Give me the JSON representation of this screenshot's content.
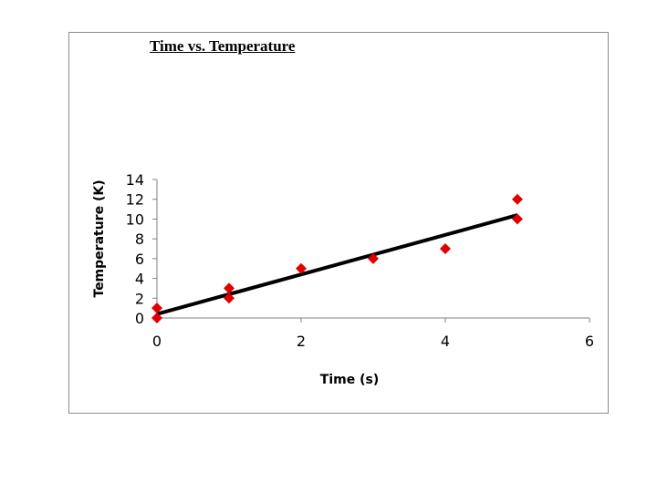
{
  "chart_data": {
    "type": "scatter",
    "title": "Time vs. Temperature",
    "xlabel": "Time (s)",
    "ylabel": "Temperature (K)",
    "xlim": [
      0,
      6
    ],
    "ylim": [
      0,
      14
    ],
    "xticks": [
      0,
      2,
      4,
      6
    ],
    "yticks": [
      0,
      2,
      4,
      6,
      8,
      10,
      12,
      14
    ],
    "grid": false,
    "marker": "diamond",
    "marker_color": "#e00000",
    "line_color": "#000000",
    "points": [
      {
        "x": 0,
        "y": 0
      },
      {
        "x": 0,
        "y": 1
      },
      {
        "x": 1,
        "y": 2
      },
      {
        "x": 1,
        "y": 3
      },
      {
        "x": 2,
        "y": 5
      },
      {
        "x": 3,
        "y": 6
      },
      {
        "x": 4,
        "y": 7
      },
      {
        "x": 5,
        "y": 10
      },
      {
        "x": 5,
        "y": 12
      }
    ],
    "trendline": {
      "x": [
        0,
        5
      ],
      "y": [
        0.4,
        10.4
      ]
    }
  }
}
